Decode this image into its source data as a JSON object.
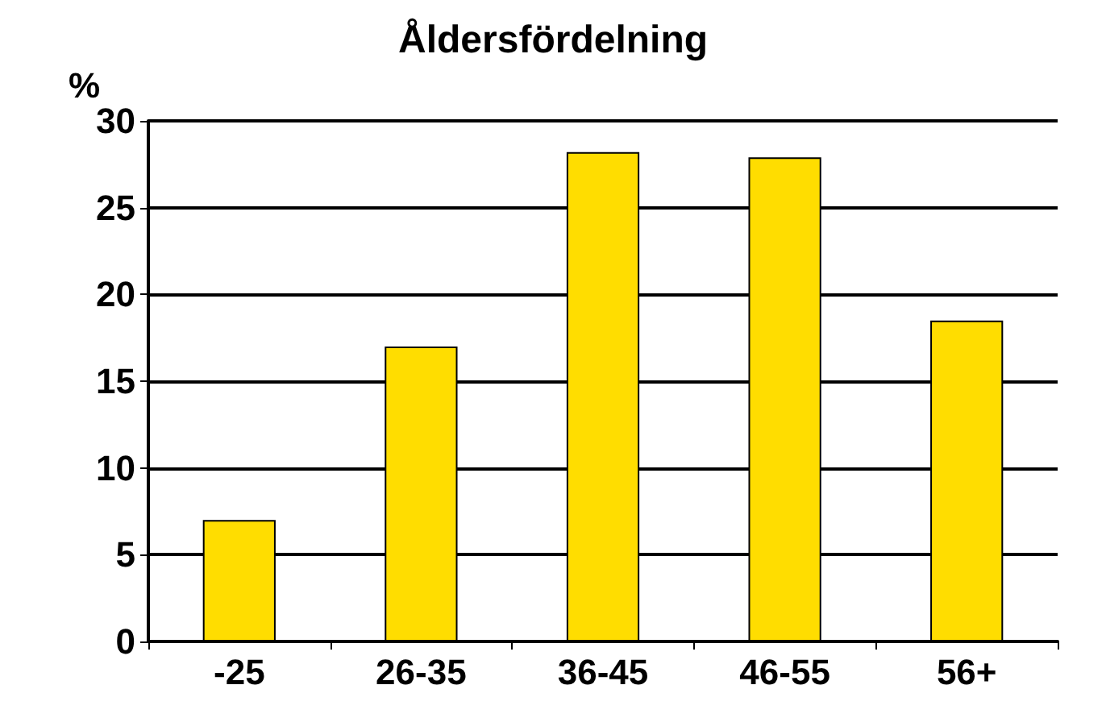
{
  "chart_data": {
    "type": "bar",
    "title": "Åldersfördelning",
    "ylabel": "%",
    "categories": [
      "-25",
      "26-35",
      "36-45",
      "46-55",
      "56+"
    ],
    "values": [
      7,
      17,
      28.2,
      27.9,
      18.5
    ],
    "color": "#ffdd00",
    "ylim": [
      0,
      30
    ],
    "yticks": [
      0,
      5,
      10,
      15,
      20,
      25,
      30
    ],
    "grid": "y"
  }
}
